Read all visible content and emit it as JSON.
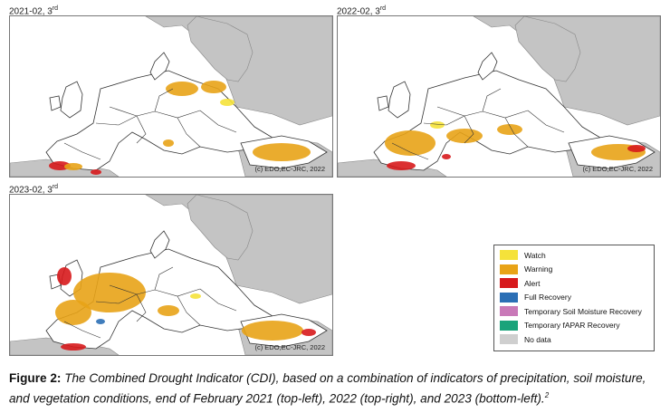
{
  "maps": [
    {
      "id": "top-left",
      "date": "2021-02, ",
      "dekad": "3",
      "dekad_suffix": "rd",
      "credit": "(c) EDO,EC-JRC, 2022"
    },
    {
      "id": "top-right",
      "date": "2022-02, ",
      "dekad": "3",
      "dekad_suffix": "rd",
      "credit": "(c) EDO,EC-JRC, 2022"
    },
    {
      "id": "bottom-left",
      "date": "2023-02, ",
      "dekad": "3",
      "dekad_suffix": "rd",
      "credit": "(c) EDO,EC-JRC, 2022"
    }
  ],
  "legend": [
    {
      "label": "Watch",
      "color": "#f5e23a"
    },
    {
      "label": "Warning",
      "color": "#e8a317"
    },
    {
      "label": "Alert",
      "color": "#d7191c"
    },
    {
      "label": "Full Recovery",
      "color": "#2b6fb5"
    },
    {
      "label": "Temporary Soil Moisture Recovery",
      "color": "#c979b8"
    },
    {
      "label": "Temporary fAPAR Recovery",
      "color": "#1aa37a"
    },
    {
      "label": "No data",
      "color": "#cfcfcf"
    }
  ],
  "colors": {
    "land": "#ffffff",
    "outside_land": "#c4c4c4",
    "borders": "#333333",
    "sea": "#ffffff"
  },
  "caption": {
    "label": "Figure 2: ",
    "text": "The Combined Drought Indicator (CDI), based on a combination of indicators of precipitation, soil moisture, and vegetation conditions, end of February 2021 (top-left), 2022 (top-right), and 2023 (bottom-left).",
    "footnote": "2"
  }
}
